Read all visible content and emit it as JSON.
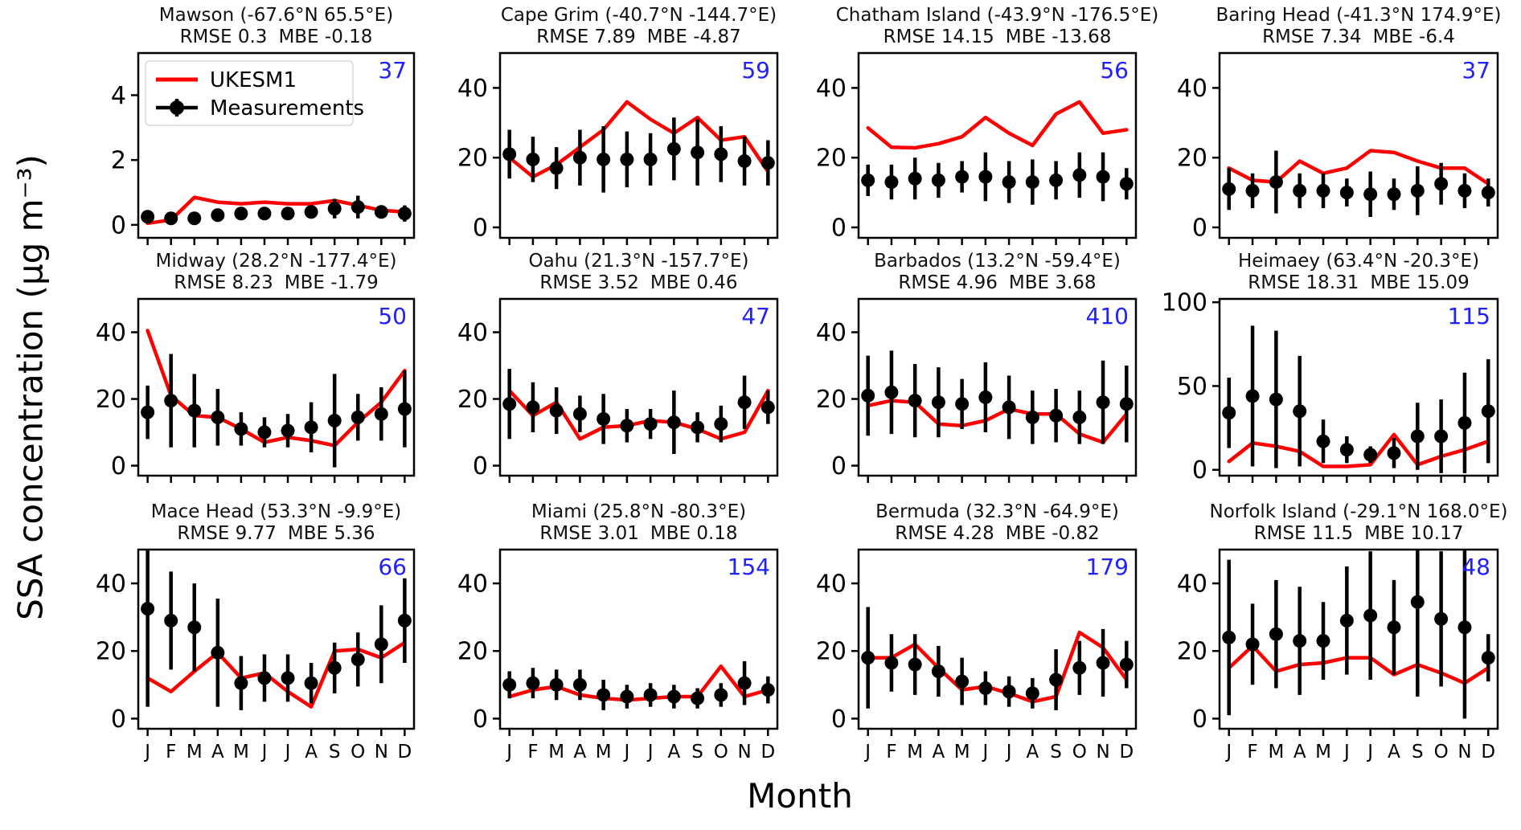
{
  "figure": {
    "ylabel": "SSA concentration (μg m⁻³)",
    "xlabel": "Month"
  },
  "legend": {
    "items": [
      {
        "label": "UKESM1",
        "color": "#ff0000"
      },
      {
        "label": "Measurements",
        "color": "#000000"
      }
    ]
  },
  "colors": {
    "model_line": "#ff0000",
    "measurements": "#000000",
    "count_text": "#1f1fff",
    "frame": "#000000",
    "legend_border": "#d9d9d9"
  },
  "months": [
    "J",
    "F",
    "M",
    "A",
    "M",
    "J",
    "J",
    "A",
    "S",
    "O",
    "N",
    "D"
  ],
  "chart_data": {
    "type": "line",
    "series_legend": [
      "UKESM1",
      "Measurements"
    ],
    "x_categories": [
      "J",
      "F",
      "M",
      "A",
      "M",
      "J",
      "J",
      "A",
      "S",
      "O",
      "N",
      "D"
    ],
    "panels": [
      {
        "title": "Mawson (-67.6°N 65.5°E)",
        "rmse_label": "RMSE 0.3",
        "mbe_label": "MBE -0.18",
        "count": "37",
        "yticks": [
          0,
          2,
          4
        ],
        "ylim": [
          -0.4,
          5.3
        ],
        "measurements": [
          0.25,
          0.2,
          0.2,
          0.3,
          0.35,
          0.35,
          0.35,
          0.4,
          0.5,
          0.55,
          0.4,
          0.35
        ],
        "errors": [
          0.08,
          0.08,
          0.06,
          0.15,
          0.18,
          0.15,
          0.15,
          0.2,
          0.3,
          0.35,
          0.15,
          0.25
        ],
        "model": [
          0.05,
          0.15,
          0.85,
          0.7,
          0.65,
          0.7,
          0.65,
          0.65,
          0.75,
          0.6,
          0.45,
          0.4
        ]
      },
      {
        "title": "Cape Grim (-40.7°N -144.7°E)",
        "rmse_label": "RMSE 7.89",
        "mbe_label": "MBE -4.87",
        "count": "59",
        "yticks": [
          0,
          20,
          40
        ],
        "ylim": [
          -3,
          50
        ],
        "measurements": [
          21,
          19.5,
          17,
          20,
          19.5,
          19.5,
          19.5,
          22.5,
          21.5,
          21,
          19,
          18.5
        ],
        "errors": [
          7,
          6.5,
          6,
          8,
          9.5,
          8,
          7.5,
          9,
          9.5,
          8,
          7,
          6.5
        ],
        "model": [
          20,
          14.5,
          18,
          23,
          28,
          36,
          31,
          27,
          31.5,
          25,
          26,
          16
        ]
      },
      {
        "title": "Chatham Island (-43.9°N -176.5°E)",
        "rmse_label": "RMSE 14.15",
        "mbe_label": "MBE -13.68",
        "count": "56",
        "yticks": [
          0,
          20,
          40
        ],
        "ylim": [
          -3,
          50
        ],
        "measurements": [
          13.5,
          13,
          14,
          13.5,
          14.5,
          14.5,
          13,
          13,
          13.5,
          15,
          14.5,
          12.5
        ],
        "errors": [
          4.5,
          5,
          6,
          5,
          4.5,
          7,
          6,
          6.5,
          5.5,
          6.5,
          7,
          4.5
        ],
        "model": [
          28.5,
          23,
          22.8,
          24,
          26,
          31.5,
          27,
          23.5,
          32.5,
          36,
          27,
          28
        ]
      },
      {
        "title": "Baring Head (-41.3°N 174.9°E)",
        "rmse_label": "RMSE 7.34",
        "mbe_label": "MBE -6.4",
        "count": "37",
        "yticks": [
          0,
          20,
          40
        ],
        "ylim": [
          -3,
          50
        ],
        "measurements": [
          11,
          10.5,
          13,
          10.5,
          10.5,
          10,
          9.5,
          9.5,
          10.5,
          12.5,
          10.5,
          10
        ],
        "errors": [
          6,
          5,
          9,
          5,
          5,
          4,
          6.5,
          4.5,
          7,
          6,
          5,
          4
        ],
        "model": [
          17,
          13.5,
          13,
          19,
          15.5,
          17,
          22,
          21.5,
          19,
          17,
          17,
          12.5
        ]
      },
      {
        "title": "Midway (28.2°N -177.4°E)",
        "rmse_label": "RMSE 8.23",
        "mbe_label": "MBE -1.79",
        "count": "50",
        "yticks": [
          0,
          20,
          40
        ],
        "ylim": [
          -3,
          50
        ],
        "measurements": [
          16,
          19.5,
          16.5,
          14.5,
          11,
          10,
          10.5,
          11.5,
          13.5,
          14.5,
          15.5,
          17
        ],
        "errors": [
          8,
          14,
          11,
          8.5,
          5,
          4.5,
          5,
          7.5,
          14,
          7,
          8,
          11.5
        ],
        "model": [
          40.5,
          21,
          15,
          14.5,
          11,
          7,
          8.5,
          7.5,
          6,
          13,
          19,
          28.5
        ]
      },
      {
        "title": "Oahu (21.3°N -157.7°E)",
        "rmse_label": "RMSE 3.52",
        "mbe_label": "MBE 0.46",
        "count": "47",
        "yticks": [
          0,
          20,
          40
        ],
        "ylim": [
          -3,
          50
        ],
        "measurements": [
          18.5,
          17.5,
          16.5,
          15.5,
          14,
          12,
          12.5,
          13,
          11.5,
          12.5,
          19,
          17.5
        ],
        "errors": [
          10.5,
          7.5,
          7,
          5.5,
          7.5,
          5,
          4.5,
          9.5,
          4.5,
          5.5,
          8,
          5
        ],
        "model": [
          22.5,
          15,
          19,
          8,
          11.5,
          12,
          13.5,
          13,
          11,
          8,
          10,
          22.5
        ]
      },
      {
        "title": "Barbados (13.2°N -59.4°E)",
        "rmse_label": "RMSE 4.96",
        "mbe_label": "MBE 3.68",
        "count": "410",
        "yticks": [
          0,
          20,
          40
        ],
        "ylim": [
          -3,
          50
        ],
        "measurements": [
          21,
          22,
          19.5,
          19,
          18.5,
          20.5,
          17.5,
          14.5,
          15,
          14.5,
          19,
          18.5
        ],
        "errors": [
          12,
          12.5,
          11,
          10.5,
          7.5,
          10.5,
          9.5,
          8,
          8,
          8,
          12.5,
          11.5
        ],
        "model": [
          18,
          19.5,
          19,
          12.5,
          12,
          13.5,
          17,
          15.5,
          15.5,
          9.5,
          7,
          15.5
        ]
      },
      {
        "title": "Heimaey (63.4°N -20.3°E)",
        "rmse_label": "RMSE 18.31",
        "mbe_label": "MBE 15.09",
        "count": "115",
        "yticks": [
          0,
          50,
          100
        ],
        "ylim": [
          -3.5,
          102
        ],
        "measurements": [
          34,
          44,
          42,
          35,
          17,
          12,
          9,
          10,
          20,
          20,
          28,
          35
        ],
        "errors": [
          21,
          42,
          41,
          33,
          13,
          8,
          5,
          9,
          20,
          22,
          30,
          31
        ],
        "model": [
          5,
          16,
          14,
          11,
          2,
          2,
          3,
          21,
          3,
          8,
          12,
          17
        ]
      },
      {
        "title": "Mace Head (53.3°N -9.9°E)",
        "rmse_label": "RMSE 9.77",
        "mbe_label": "MBE 5.36",
        "count": "66",
        "yticks": [
          0,
          20,
          40
        ],
        "ylim": [
          -3,
          50
        ],
        "measurements": [
          32.5,
          29,
          27,
          19.5,
          10.5,
          12,
          12,
          10.5,
          15,
          17.5,
          22,
          29
        ],
        "errors": [
          29,
          14.5,
          13,
          16,
          8,
          7,
          7,
          6,
          7.5,
          8,
          11.5,
          12.5
        ],
        "model": [
          12,
          8,
          14,
          19.5,
          12,
          13.5,
          8,
          3.5,
          20,
          20.5,
          18,
          22.5
        ]
      },
      {
        "title": "Miami (25.8°N -80.3°E)",
        "rmse_label": "RMSE 3.01",
        "mbe_label": "MBE 0.18",
        "count": "154",
        "yticks": [
          0,
          20,
          40
        ],
        "ylim": [
          -3,
          50
        ],
        "measurements": [
          10,
          10.5,
          10,
          10,
          7,
          6.5,
          7,
          6.5,
          6,
          7,
          10.5,
          8.5
        ],
        "errors": [
          4,
          4.5,
          4.5,
          4.5,
          4.5,
          3.5,
          3.5,
          3.5,
          3,
          3.5,
          6.5,
          4
        ],
        "model": [
          6.5,
          8.5,
          9.5,
          7,
          6,
          5.5,
          6,
          6.5,
          6.5,
          15.5,
          6.5,
          8.5
        ]
      },
      {
        "title": "Bermuda (32.3°N -64.9°E)",
        "rmse_label": "RMSE 4.28",
        "mbe_label": "MBE -0.82",
        "count": "179",
        "yticks": [
          0,
          20,
          40
        ],
        "ylim": [
          -3,
          50
        ],
        "measurements": [
          18,
          16.5,
          16,
          14,
          11,
          9,
          8,
          7.5,
          11.5,
          15,
          16.5,
          16
        ],
        "errors": [
          15,
          8.5,
          9,
          7.5,
          7,
          5,
          4.5,
          4.5,
          9,
          8,
          10,
          7
        ],
        "model": [
          18,
          18,
          22,
          15,
          8.5,
          9.5,
          7.5,
          5,
          6.5,
          25.5,
          21,
          11.5
        ]
      },
      {
        "title": "Norfolk Island (-29.1°N 168.0°E)",
        "rmse_label": "RMSE 11.5",
        "mbe_label": "MBE 10.17",
        "count": "48",
        "yticks": [
          0,
          20,
          40
        ],
        "ylim": [
          -3,
          50
        ],
        "measurements": [
          24,
          22,
          25,
          23,
          23,
          29,
          30.5,
          27,
          34.5,
          29.5,
          27,
          18
        ],
        "errors": [
          23,
          12,
          16,
          16,
          11.5,
          16,
          19,
          14,
          28,
          20,
          27,
          7
        ],
        "model": [
          15,
          21.5,
          14,
          16,
          16.5,
          18,
          18,
          13,
          16,
          13.5,
          10.5,
          15
        ]
      }
    ]
  }
}
